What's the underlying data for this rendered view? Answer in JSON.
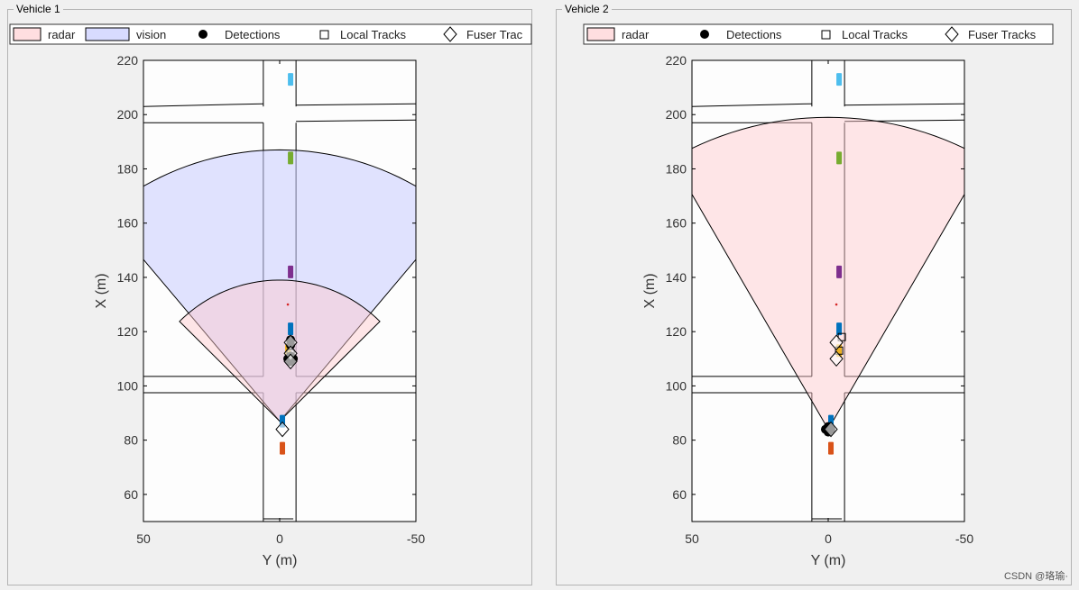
{
  "watermark": "CSDN @珞瑜·",
  "colors": {
    "radar_fill": "#ffc8cc",
    "radar_stroke": "#000000",
    "vision_fill": "#c8ccff",
    "vision_stroke": "#000000",
    "road": "#ffffff",
    "plot_bg": "#fdfdfd"
  },
  "panels": [
    {
      "title": "Vehicle 1",
      "legend": {
        "items": [
          {
            "label": "radar",
            "icon": "radar-patch"
          },
          {
            "label": "vision",
            "icon": "vision-patch"
          },
          {
            "label": "Detections",
            "icon": "filled-circle"
          },
          {
            "label": "Local Tracks",
            "icon": "open-square"
          },
          {
            "label": "Fuser Trac",
            "icon": "open-diamond"
          }
        ]
      },
      "chart_data": {
        "type": "scatter",
        "xlabel": "Y (m)",
        "ylabel": "X (m)",
        "xlim": [
          50,
          -50
        ],
        "ylim": [
          50,
          220
        ],
        "xticks": [
          50,
          0,
          -50
        ],
        "yticks": [
          60,
          80,
          100,
          120,
          140,
          160,
          180,
          200,
          220
        ],
        "coverage": [
          {
            "name": "vision",
            "origin": [
              0,
              87
            ],
            "range": 100,
            "az_center": 0,
            "fov": 80
          },
          {
            "name": "radar",
            "origin": [
              0,
              87
            ],
            "range": 52,
            "az_center": 0,
            "fov": 90
          }
        ],
        "vehicles": [
          {
            "x": 213,
            "y": -4,
            "color": "#4dbeee"
          },
          {
            "x": 184,
            "y": -4,
            "color": "#77ac30"
          },
          {
            "x": 142,
            "y": -4,
            "color": "#7e2f8e"
          },
          {
            "x": 121,
            "y": -4,
            "color": "#0072bd"
          },
          {
            "x": 113,
            "y": -3,
            "color": "#edb120"
          },
          {
            "x": 87,
            "y": -1,
            "color": "#0072bd"
          },
          {
            "x": 77,
            "y": -1,
            "color": "#d95319"
          }
        ],
        "detections": [
          {
            "x": 117,
            "y": -4
          },
          {
            "x": 115,
            "y": -4
          },
          {
            "x": 111,
            "y": -4
          },
          {
            "x": 110,
            "y": -3
          },
          {
            "x": 110,
            "y": -5
          },
          {
            "x": 109,
            "y": -4
          }
        ],
        "local_tracks": [
          {
            "x": 116,
            "y": -4
          },
          {
            "x": 112,
            "y": -4
          },
          {
            "x": 110,
            "y": -4
          }
        ],
        "fuser_tracks": [
          {
            "x": 116,
            "y": -4
          },
          {
            "x": 112,
            "y": -4
          },
          {
            "x": 109,
            "y": -4
          },
          {
            "x": 84,
            "y": -1
          }
        ],
        "red_dot": {
          "x": 130,
          "y": -3
        }
      }
    },
    {
      "title": "Vehicle 2",
      "legend": {
        "items": [
          {
            "label": "radar",
            "icon": "radar-patch"
          },
          {
            "label": "Detections",
            "icon": "filled-circle"
          },
          {
            "label": "Local Tracks",
            "icon": "open-square"
          },
          {
            "label": "Fuser Tracks",
            "icon": "open-diamond"
          }
        ]
      },
      "chart_data": {
        "type": "scatter",
        "xlabel": "Y (m)",
        "ylabel": "X (m)",
        "xlim": [
          50,
          -50
        ],
        "ylim": [
          50,
          220
        ],
        "xticks": [
          50,
          0,
          -50
        ],
        "yticks": [
          60,
          80,
          100,
          120,
          140,
          160,
          180,
          200,
          220
        ],
        "coverage": [
          {
            "name": "radar",
            "origin": [
              0,
              84
            ],
            "range": 115,
            "az_center": 0,
            "fov": 60
          }
        ],
        "vehicles": [
          {
            "x": 213,
            "y": -4,
            "color": "#4dbeee"
          },
          {
            "x": 184,
            "y": -4,
            "color": "#77ac30"
          },
          {
            "x": 142,
            "y": -4,
            "color": "#7e2f8e"
          },
          {
            "x": 121,
            "y": -4,
            "color": "#0072bd"
          },
          {
            "x": 113,
            "y": -4,
            "color": "#edb120"
          },
          {
            "x": 87,
            "y": -1,
            "color": "#0072bd"
          },
          {
            "x": 77,
            "y": -1,
            "color": "#d95319"
          }
        ],
        "detections": [
          {
            "x": 85,
            "y": 0
          },
          {
            "x": 84,
            "y": 1
          },
          {
            "x": 84,
            "y": -1
          },
          {
            "x": 83,
            "y": 0
          }
        ],
        "local_tracks": [
          {
            "x": 118,
            "y": -5
          },
          {
            "x": 113,
            "y": -4
          },
          {
            "x": 84,
            "y": 0
          }
        ],
        "fuser_tracks": [
          {
            "x": 116,
            "y": -3
          },
          {
            "x": 110,
            "y": -3
          },
          {
            "x": 84,
            "y": -1
          }
        ],
        "red_dot": {
          "x": 130,
          "y": -3
        }
      }
    }
  ]
}
